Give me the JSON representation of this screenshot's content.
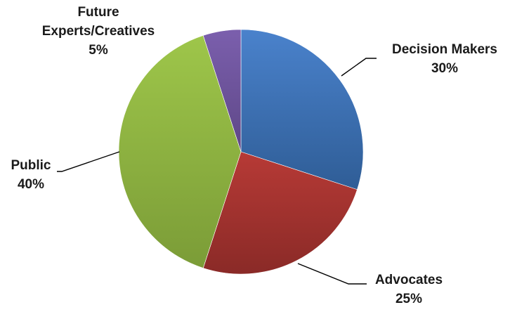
{
  "chart_data": {
    "type": "pie",
    "title": "",
    "start_angle_deg": 0,
    "direction": "clockwise",
    "slices": [
      {
        "label": "Decision Makers",
        "value": 30,
        "value_label": "30%",
        "color": "#3d6fb4",
        "color_light": "#4a82cc",
        "color_dark": "#2f5d96"
      },
      {
        "label": "Advocates",
        "value": 25,
        "value_label": "25%",
        "color": "#a0322f",
        "color_light": "#b73a36",
        "color_dark": "#8a2a27"
      },
      {
        "label": "Public",
        "value": 40,
        "value_label": "40%",
        "color": "#8fb441",
        "color_light": "#9ec64a",
        "color_dark": "#7b9c37"
      },
      {
        "label": "Future Experts/Creatives",
        "label_lines": [
          "Future",
          "Experts/Creatives"
        ],
        "value": 5,
        "value_label": "5%",
        "color": "#6d529b",
        "color_light": "#7b5fad",
        "color_dark": "#5e4787"
      }
    ]
  }
}
